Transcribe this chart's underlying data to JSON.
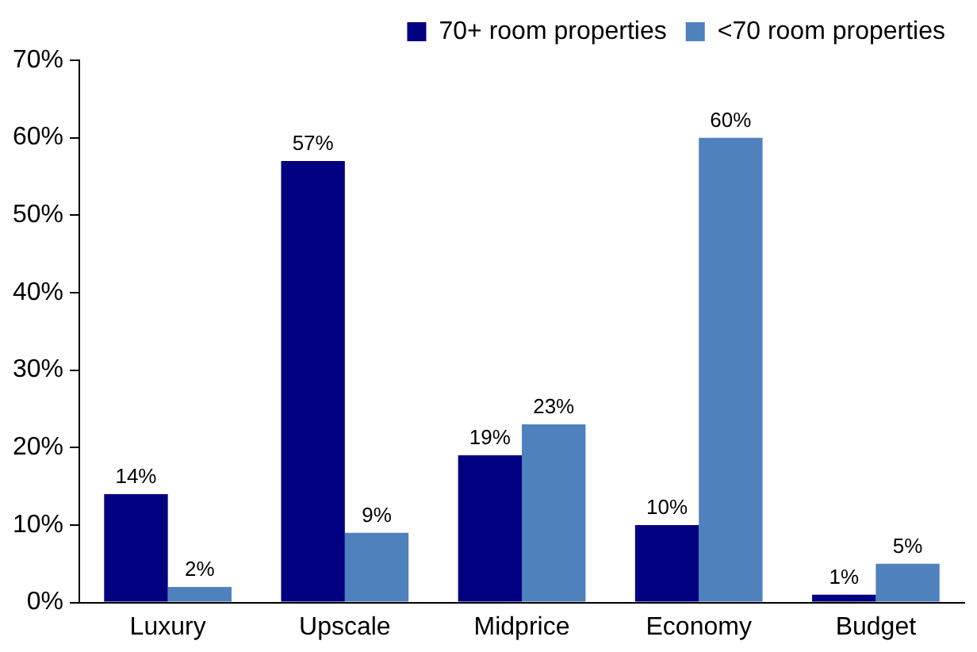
{
  "chart_data": {
    "type": "bar",
    "categories": [
      "Luxury",
      "Upscale",
      "Midprice",
      "Economy",
      "Budget"
    ],
    "series": [
      {
        "name": "70+ room properties",
        "color": "#000080",
        "values": [
          14,
          57,
          19,
          10,
          1
        ],
        "value_labels": [
          "14%",
          "57%",
          "19%",
          "10%",
          "1%"
        ]
      },
      {
        "name": "<70 room properties",
        "color": "#4f81bd",
        "values": [
          2,
          9,
          23,
          60,
          5
        ],
        "value_labels": [
          "2%",
          "9%",
          "23%",
          "60%",
          "5%"
        ]
      }
    ],
    "ylim": [
      0,
      70
    ],
    "yticks": [
      {
        "value": 0,
        "label": "0%"
      },
      {
        "value": 10,
        "label": "10%"
      },
      {
        "value": 20,
        "label": "20%"
      },
      {
        "value": 30,
        "label": "30%"
      },
      {
        "value": 40,
        "label": "40%"
      },
      {
        "value": 50,
        "label": "50%"
      },
      {
        "value": 60,
        "label": "60%"
      },
      {
        "value": 70,
        "label": "70%"
      }
    ],
    "grid": false,
    "legend": "top right"
  }
}
